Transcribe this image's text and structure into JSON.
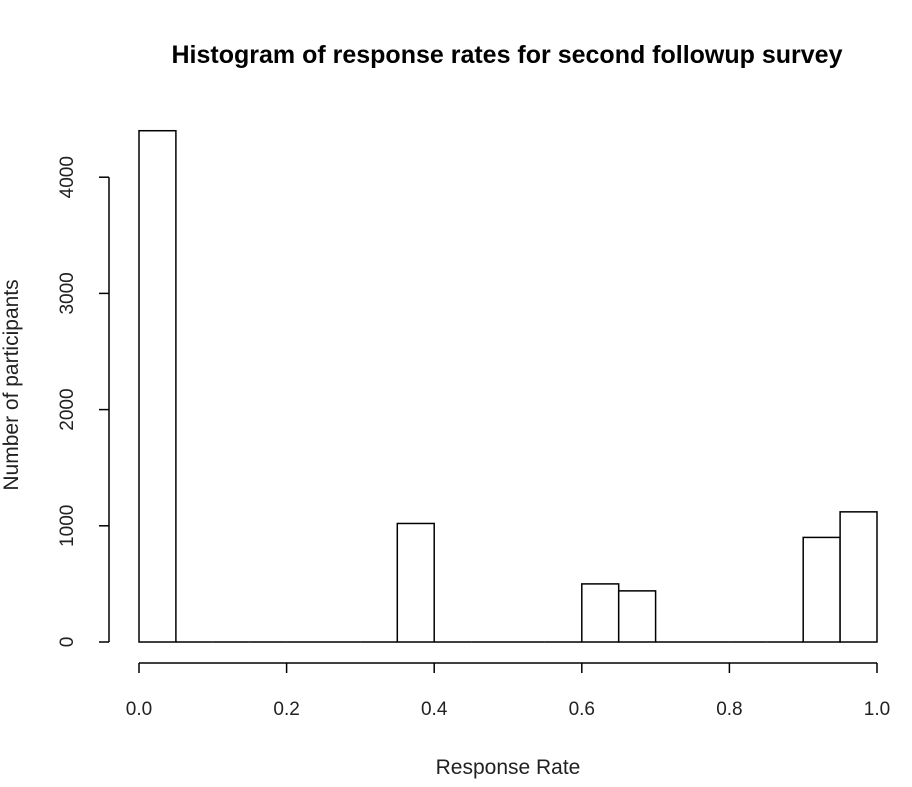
{
  "chart_data": {
    "type": "bar",
    "title": "Histogram of response rates for second followup survey",
    "xlabel": "Response Rate",
    "ylabel": "Number of participants",
    "bin_width": 0.05,
    "bins": [
      {
        "x0": 0.0,
        "x1": 0.05,
        "count": 4400
      },
      {
        "x0": 0.05,
        "x1": 0.1,
        "count": 0
      },
      {
        "x0": 0.1,
        "x1": 0.15,
        "count": 0
      },
      {
        "x0": 0.15,
        "x1": 0.2,
        "count": 0
      },
      {
        "x0": 0.2,
        "x1": 0.25,
        "count": 0
      },
      {
        "x0": 0.25,
        "x1": 0.3,
        "count": 0
      },
      {
        "x0": 0.3,
        "x1": 0.35,
        "count": 0
      },
      {
        "x0": 0.35,
        "x1": 0.4,
        "count": 1020
      },
      {
        "x0": 0.4,
        "x1": 0.45,
        "count": 0
      },
      {
        "x0": 0.45,
        "x1": 0.5,
        "count": 0
      },
      {
        "x0": 0.5,
        "x1": 0.55,
        "count": 0
      },
      {
        "x0": 0.55,
        "x1": 0.6,
        "count": 0
      },
      {
        "x0": 0.6,
        "x1": 0.65,
        "count": 500
      },
      {
        "x0": 0.65,
        "x1": 0.7,
        "count": 440
      },
      {
        "x0": 0.7,
        "x1": 0.75,
        "count": 0
      },
      {
        "x0": 0.75,
        "x1": 0.8,
        "count": 0
      },
      {
        "x0": 0.8,
        "x1": 0.85,
        "count": 0
      },
      {
        "x0": 0.85,
        "x1": 0.9,
        "count": 0
      },
      {
        "x0": 0.9,
        "x1": 0.95,
        "count": 900
      },
      {
        "x0": 0.95,
        "x1": 1.0,
        "count": 1120
      }
    ],
    "xlim": [
      0,
      1
    ],
    "ylim": [
      0,
      4400
    ],
    "x_ticks": [
      0.0,
      0.2,
      0.4,
      0.6,
      0.8,
      1.0
    ],
    "x_tick_labels": [
      "0.0",
      "0.2",
      "0.4",
      "0.6",
      "0.8",
      "1.0"
    ],
    "y_ticks": [
      0,
      1000,
      2000,
      3000,
      4000
    ],
    "y_tick_labels": [
      "0",
      "1000",
      "2000",
      "3000",
      "4000"
    ],
    "grid": false,
    "legend": "none",
    "colors": {
      "bar_fill": "#ffffff",
      "bar_stroke": "#000000"
    }
  }
}
